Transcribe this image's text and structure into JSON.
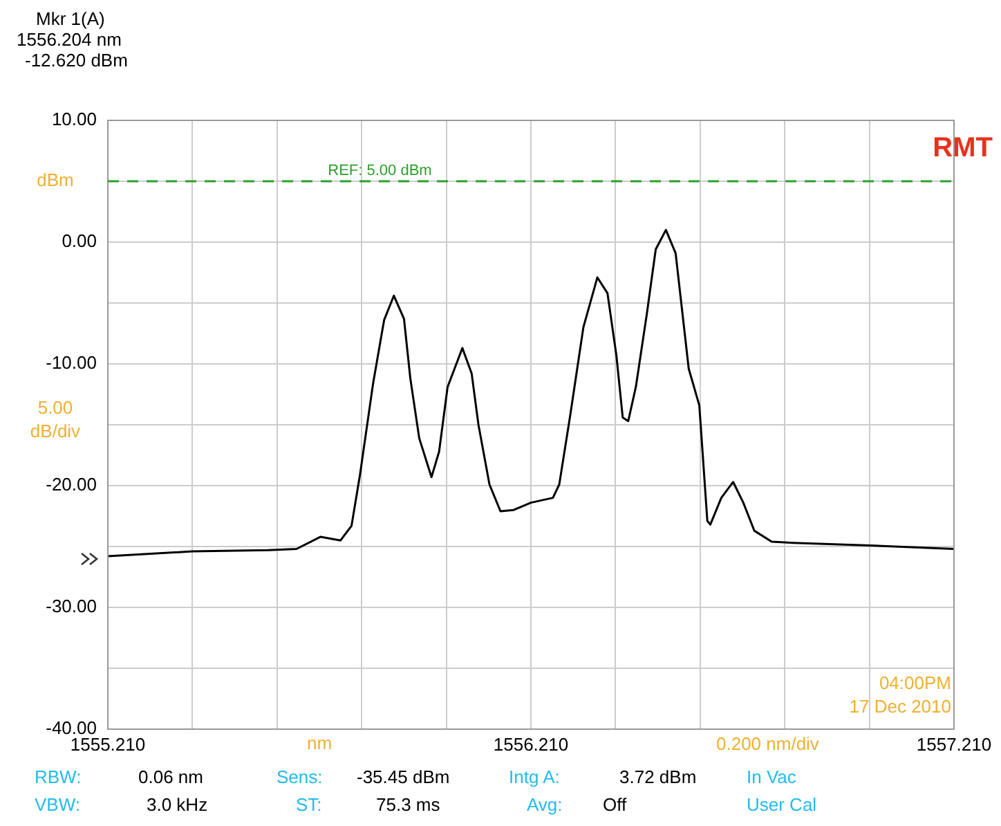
{
  "chart_data": {
    "type": "line",
    "xlabel": "nm",
    "ylabel": "dBm",
    "x": [
      1555.21,
      1555.409,
      1555.589,
      1555.656,
      1555.713,
      1555.76,
      1555.786,
      1555.806,
      1555.837,
      1555.863,
      1555.886,
      1555.91,
      1555.925,
      1555.946,
      1555.975,
      1555.993,
      1556.013,
      1556.048,
      1556.07,
      1556.086,
      1556.112,
      1556.138,
      1556.169,
      1556.21,
      1556.262,
      1556.277,
      1556.303,
      1556.334,
      1556.367,
      1556.391,
      1556.412,
      1556.427,
      1556.44,
      1556.458,
      1556.484,
      1556.505,
      1556.529,
      1556.552,
      1556.583,
      1556.608,
      1556.627,
      1556.634,
      1556.66,
      1556.688,
      1556.712,
      1556.738,
      1556.779,
      1556.831,
      1557.0,
      1557.21
    ],
    "series": [
      {
        "color": "#000000",
        "values": [
          -25.8,
          -25.4,
          -25.3,
          -25.2,
          -24.2,
          -24.5,
          -23.3,
          -19.1,
          -11.6,
          -6.4,
          -4.4,
          -6.3,
          -11.2,
          -16.1,
          -19.3,
          -17.2,
          -11.9,
          -8.7,
          -10.8,
          -15.0,
          -19.9,
          -22.1,
          -22.0,
          -21.4,
          -21.0,
          -19.9,
          -14.2,
          -7.0,
          -2.9,
          -4.2,
          -9.3,
          -14.4,
          -14.7,
          -11.9,
          -5.9,
          -0.6,
          1.0,
          -0.9,
          -10.4,
          -13.4,
          -22.9,
          -23.2,
          -21.0,
          -19.7,
          -21.4,
          -23.7,
          -24.6,
          -24.7,
          -24.9,
          -25.2
        ]
      }
    ],
    "xlim": [
      1555.21,
      1557.21
    ],
    "xticks": [
      {
        "value": 1555.21,
        "label": "1555.210"
      },
      {
        "value": 1555.41,
        "label": null
      },
      {
        "value": 1555.61,
        "label": null
      },
      {
        "value": 1555.81,
        "label": null
      },
      {
        "value": 1556.01,
        "label": null
      },
      {
        "value": 1556.21,
        "label": "1556.210"
      },
      {
        "value": 1556.41,
        "label": null
      },
      {
        "value": 1556.61,
        "label": null
      },
      {
        "value": 1556.81,
        "label": null
      },
      {
        "value": 1557.01,
        "label": null
      },
      {
        "value": 1557.21,
        "label": "1557.210"
      }
    ],
    "ylim": [
      -40,
      10
    ],
    "yticks": [
      {
        "value": 10,
        "label": "10.00"
      },
      {
        "value": 5,
        "label": null
      },
      {
        "value": 0,
        "label": "0.00"
      },
      {
        "value": -5,
        "label": null
      },
      {
        "value": -10,
        "label": "-10.00"
      },
      {
        "value": -15,
        "label": null
      },
      {
        "value": -20,
        "label": "-20.00"
      },
      {
        "value": -25,
        "label": null
      },
      {
        "value": -30,
        "label": "-30.00"
      },
      {
        "value": -35,
        "label": null
      },
      {
        "value": -40,
        "label": "-40.00"
      }
    ],
    "grid": true,
    "legend": false,
    "ref_lines": [
      {
        "axis": "y",
        "value": 5,
        "label": "REF: 5.00 dBm",
        "color": "#2ca02c",
        "line_style": "dashed"
      }
    ],
    "annotations": [
      "Mkr 1(A)",
      "1556.204 nm",
      "-12.620 dBm",
      "RMT",
      "5.00",
      "dB/div",
      "0.200 nm/div",
      "04:00PM",
      "17 Dec 2010",
      "RBW:",
      "0.06 nm",
      "Sens:",
      "-35.45 dBm",
      "Intg A:",
      "3.72 dBm",
      "In Vac",
      "VBW:",
      "3.0 kHz",
      "ST:",
      "75.3 ms",
      "Avg:",
      "Off",
      "User Cal"
    ]
  }
}
